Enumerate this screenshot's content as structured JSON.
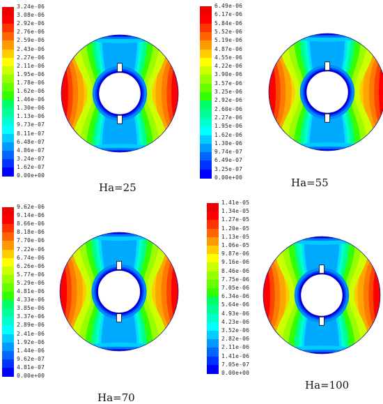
{
  "colormap": [
    "#0000ff",
    "#0033ff",
    "#0066ff",
    "#0099ff",
    "#00ccff",
    "#00ffff",
    "#00ffcc",
    "#00ff99",
    "#00ff66",
    "#33ff00",
    "#66ff00",
    "#99ff00",
    "#ccff00",
    "#ffff00",
    "#ffcc00",
    "#ff9900",
    "#ff6600",
    "#ff3300",
    "#ff0000",
    "#ee0000"
  ],
  "panels": [
    {
      "caption": "Ha=25",
      "legend_labels": [
        "3.24e-06",
        "3.08e-06",
        "2.92e-06",
        "2.76e-06",
        "2.59e-06",
        "2.43e-06",
        "2.27e-06",
        "2.11e-06",
        "1.95e-06",
        "1.78e-06",
        "1.62e-06",
        "1.46e-06",
        "1.30e-06",
        "1.13e-06",
        "9.73e-07",
        "8.11e-07",
        "6.48e-07",
        "4.86e-07",
        "3.24e-07",
        "1.62e-07",
        "0.00e+00"
      ]
    },
    {
      "caption": "Ha=55",
      "legend_labels": [
        "6.49e-06",
        "6.17e-06",
        "5.84e-06",
        "5.52e-06",
        "5.19e-06",
        "4.87e-06",
        "4.55e-06",
        "4.22e-06",
        "3.90e-06",
        "3.57e-06",
        "3.25e-06",
        "2.92e-06",
        "2.60e-06",
        "2.27e-06",
        "1.95e-06",
        "1.62e-06",
        "1.30e-06",
        "9.74e-07",
        "6.49e-07",
        "3.25e-07",
        "0.00e+00"
      ]
    },
    {
      "caption": "Ha=70",
      "legend_labels": [
        "9.62e-06",
        "9.14e-06",
        "8.66e-06",
        "8.18e-06",
        "7.70e-06",
        "7.22e-06",
        "6.74e-06",
        "6.26e-06",
        "5.77e-06",
        "5.29e-06",
        "4.81e-06",
        "4.33e-06",
        "3.85e-06",
        "3.37e-06",
        "2.89e-06",
        "2.41e-06",
        "1.92e-06",
        "1.44e-06",
        "9.62e-07",
        "4.81e-07",
        "0.00e+00"
      ]
    },
    {
      "caption": "Ha=100",
      "legend_labels": [
        "1.41e-05",
        "1.34e-05",
        "1.27e-05",
        "1.20e-05",
        "1.13e-05",
        "1.06e-05",
        "9.87e-06",
        "9.16e-06",
        "8.46e-06",
        "7.75e-06",
        "7.05e-06",
        "6.34e-06",
        "5.64e-06",
        "4.93e-06",
        "4.23e-06",
        "3.52e-06",
        "2.82e-06",
        "2.11e-06",
        "1.41e-06",
        "7.05e-07",
        "0.00e+00"
      ]
    }
  ]
}
